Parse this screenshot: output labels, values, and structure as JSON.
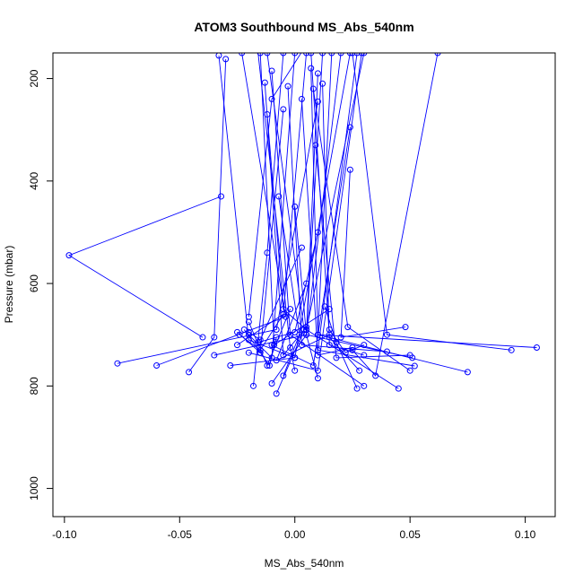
{
  "chart_data": {
    "type": "line",
    "title": "ATOM3 Southbound MS_Abs_540nm",
    "xlabel": "MS_Abs_540nm",
    "ylabel": "Pressure (mbar)",
    "xlim": [
      -0.105,
      0.113
    ],
    "ylim": [
      1055,
      150
    ],
    "y_reversed": true,
    "x_ticks": [
      -0.1,
      -0.05,
      0.0,
      0.05,
      0.1
    ],
    "x_tick_labels": [
      "-0.10",
      "-0.05",
      "0.00",
      "0.05",
      "0.10"
    ],
    "y_ticks": [
      200,
      400,
      600,
      800,
      1000
    ],
    "y_tick_labels": [
      "200",
      "400",
      "600",
      "800",
      "1000"
    ],
    "grid": false,
    "line_color": "#0000ff",
    "marker": "open-circle",
    "series": [
      {
        "x": [
          0.003,
          -0.01,
          -0.02
        ],
        "y": [
          148,
          240,
          665
        ]
      },
      {
        "x": [
          -0.03,
          -0.035,
          -0.046
        ],
        "y": [
          162,
          705,
          773
        ]
      },
      {
        "x": [
          -0.033,
          -0.02,
          0.0
        ],
        "y": [
          155,
          710,
          745
        ]
      },
      {
        "x": [
          -0.012,
          0.004,
          -0.008
        ],
        "y": [
          150,
          690,
          815
        ]
      },
      {
        "x": [
          -0.015,
          -0.009,
          0.015
        ],
        "y": [
          150,
          720,
          650
        ]
      },
      {
        "x": [
          0.012,
          0.005,
          -0.01
        ],
        "y": [
          150,
          700,
          795
        ]
      },
      {
        "x": [
          0.02,
          0.005,
          0.051
        ],
        "y": [
          150,
          700,
          745
        ]
      },
      {
        "x": [
          -0.005,
          -0.012,
          -0.018
        ],
        "y": [
          150,
          540,
          800
        ]
      },
      {
        "x": [
          0.007,
          0.015,
          0.028
        ],
        "y": [
          150,
          705,
          770
        ]
      },
      {
        "x": [
          0.016,
          0.01,
          0.075
        ],
        "y": [
          150,
          700,
          773
        ]
      },
      {
        "x": [
          0.024,
          0.0,
          -0.028
        ],
        "y": [
          150,
          745,
          760
        ]
      },
      {
        "x": [
          0.027,
          0.01,
          0.052
        ],
        "y": [
          150,
          730,
          761
        ]
      },
      {
        "x": [
          -0.023,
          -0.004,
          -0.06
        ],
        "y": [
          150,
          665,
          760
        ]
      },
      {
        "x": [
          0.029,
          0.01,
          -0.02
        ],
        "y": [
          150,
          770,
          735
        ]
      },
      {
        "x": [
          0.03,
          0.005,
          0.045
        ],
        "y": [
          150,
          690,
          805
        ]
      },
      {
        "x": [
          0.005,
          -0.005,
          -0.025
        ],
        "y": [
          150,
          660,
          720
        ]
      },
      {
        "x": [
          0.062,
          0.035,
          0.025
        ],
        "y": [
          150,
          780,
          730
        ]
      },
      {
        "x": [
          0.025,
          0.04,
          0.094
        ],
        "y": [
          150,
          700,
          730
        ]
      },
      {
        "x": [
          -0.016,
          -0.002,
          0.0
        ],
        "y": [
          148,
          725,
          770
        ]
      },
      {
        "x": [
          0.0,
          -0.01,
          -0.02
        ],
        "y": [
          150,
          745,
          700
        ]
      },
      {
        "x": [
          -0.013,
          -0.005,
          0.005
        ],
        "y": [
          208,
          740,
          685
        ]
      },
      {
        "x": [
          -0.01,
          -0.002,
          0.03
        ],
        "y": [
          185,
          700,
          800
        ]
      },
      {
        "x": [
          0.01,
          0.005,
          -0.035
        ],
        "y": [
          190,
          700,
          740
        ]
      },
      {
        "x": [
          0.007,
          0.01,
          0.105
        ],
        "y": [
          180,
          700,
          725
        ]
      },
      {
        "x": [
          -0.003,
          0.003,
          0.04
        ],
        "y": [
          215,
          720,
          733
        ]
      },
      {
        "x": [
          0.012,
          0.015,
          0.03
        ],
        "y": [
          210,
          720,
          740
        ]
      },
      {
        "x": [
          0.008,
          0.023,
          0.05
        ],
        "y": [
          220,
          685,
          770
        ]
      },
      {
        "x": [
          -0.005,
          -0.015,
          -0.025
        ],
        "y": [
          260,
          735,
          695
        ]
      },
      {
        "x": [
          0.003,
          0.01,
          0.025
        ],
        "y": [
          240,
          740,
          725
        ]
      },
      {
        "x": [
          0.01,
          -0.008,
          -0.077
        ],
        "y": [
          245,
          690,
          756
        ]
      },
      {
        "x": [
          0.024,
          0.008,
          -0.01
        ],
        "y": [
          295,
          760,
          720
        ]
      },
      {
        "x": [
          0.024,
          0.02,
          0.048
        ],
        "y": [
          378,
          705,
          685
        ]
      },
      {
        "x": [
          -0.007,
          0.002,
          -0.005
        ],
        "y": [
          430,
          700,
          780
        ]
      },
      {
        "x": [
          -0.032,
          -0.098,
          -0.04
        ],
        "y": [
          430,
          545,
          705
        ]
      },
      {
        "x": [
          -0.012,
          -0.005,
          0.005
        ],
        "y": [
          270,
          650,
          690
        ]
      },
      {
        "x": [
          0.0,
          0.005,
          0.01
        ],
        "y": [
          450,
          700,
          785
        ]
      },
      {
        "x": [
          0.003,
          -0.015,
          -0.02
        ],
        "y": [
          530,
          710,
          695
        ]
      },
      {
        "x": [
          0.01,
          0.0,
          -0.016
        ],
        "y": [
          500,
          695,
          715
        ]
      },
      {
        "x": [
          0.005,
          -0.008,
          0.015
        ],
        "y": [
          600,
          750,
          700
        ]
      },
      {
        "x": [
          0.013,
          0.018,
          0.027
        ],
        "y": [
          645,
          715,
          805
        ]
      },
      {
        "x": [
          -0.002,
          -0.012,
          -0.02
        ],
        "y": [
          650,
          760,
          675
        ]
      },
      {
        "x": [
          -0.022,
          -0.011,
          -0.008
        ],
        "y": [
          690,
          760,
          705
        ]
      },
      {
        "x": [
          -0.024,
          -0.015,
          -0.005
        ],
        "y": [
          700,
          730,
          660
        ]
      },
      {
        "x": [
          0.015,
          0.022,
          0.03
        ],
        "y": [
          690,
          735,
          720
        ]
      },
      {
        "x": [
          0.009,
          0.018,
          0.05
        ],
        "y": [
          330,
          745,
          740
        ]
      }
    ]
  }
}
